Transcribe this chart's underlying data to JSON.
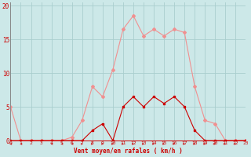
{
  "x": [
    0,
    1,
    2,
    3,
    4,
    5,
    6,
    7,
    8,
    9,
    10,
    11,
    12,
    13,
    14,
    15,
    16,
    17,
    18,
    19,
    20,
    21,
    22,
    23
  ],
  "rafales": [
    5,
    0,
    0,
    0,
    0,
    0,
    0.5,
    3,
    8,
    6.5,
    10.5,
    16.5,
    18.5,
    15.5,
    16.5,
    15.5,
    16.5,
    16,
    8,
    3,
    2.5,
    0,
    0,
    0
  ],
  "moyen": [
    0,
    0,
    0,
    0,
    0,
    0,
    0,
    0,
    1.5,
    2.5,
    0,
    5,
    6.5,
    5,
    6.5,
    5.5,
    6.5,
    5,
    1.5,
    0,
    0,
    0,
    0,
    0
  ],
  "bg_color": "#cce8e8",
  "grid_color": "#aacece",
  "rafales_color": "#f09090",
  "moyen_color": "#cc0000",
  "xlabel": "Vent moyen/en rafales ( km/h )",
  "ylabel_ticks": [
    0,
    5,
    10,
    15,
    20
  ],
  "xlim": [
    0,
    23
  ],
  "ylim": [
    0,
    20.5
  ]
}
